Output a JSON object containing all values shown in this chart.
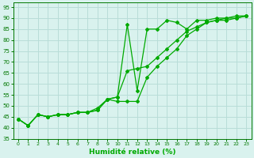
{
  "title": "",
  "xlabel": "Humidité relative (%)",
  "ylabel": "",
  "background_color": "#d9f2ee",
  "grid_color": "#b8ddd8",
  "line_color": "#00aa00",
  "ylim": [
    35,
    97
  ],
  "xlim": [
    -0.5,
    23.5
  ],
  "yticks": [
    35,
    40,
    45,
    50,
    55,
    60,
    65,
    70,
    75,
    80,
    85,
    90,
    95
  ],
  "xticks": [
    0,
    1,
    2,
    3,
    4,
    5,
    6,
    7,
    8,
    9,
    10,
    11,
    12,
    13,
    14,
    15,
    16,
    17,
    18,
    19,
    20,
    21,
    22,
    23
  ],
  "line1_x": [
    0,
    1,
    2,
    3,
    4,
    5,
    6,
    7,
    8,
    9,
    10,
    11,
    12,
    13,
    14,
    15,
    16,
    17,
    18,
    19,
    20,
    21,
    22,
    23
  ],
  "line1_y": [
    44,
    41,
    46,
    45,
    46,
    46,
    47,
    47,
    48,
    53,
    54,
    87,
    57,
    85,
    85,
    89,
    88,
    85,
    89,
    89,
    90,
    90,
    91,
    91
  ],
  "line2_x": [
    0,
    1,
    2,
    3,
    4,
    5,
    6,
    7,
    8,
    9,
    10,
    11,
    12,
    13,
    14,
    15,
    16,
    17,
    18,
    19,
    20,
    21,
    22,
    23
  ],
  "line2_y": [
    44,
    41,
    46,
    45,
    46,
    46,
    47,
    47,
    48,
    53,
    54,
    66,
    67,
    68,
    72,
    76,
    80,
    84,
    86,
    88,
    89,
    90,
    90,
    91
  ],
  "line3_x": [
    0,
    1,
    2,
    3,
    4,
    5,
    6,
    7,
    8,
    9,
    10,
    11,
    12,
    13,
    14,
    15,
    16,
    17,
    18,
    19,
    20,
    21,
    22,
    23
  ],
  "line3_y": [
    44,
    41,
    46,
    45,
    46,
    46,
    47,
    47,
    49,
    53,
    52,
    52,
    52,
    63,
    68,
    72,
    76,
    82,
    85,
    88,
    89,
    89,
    90,
    91
  ]
}
